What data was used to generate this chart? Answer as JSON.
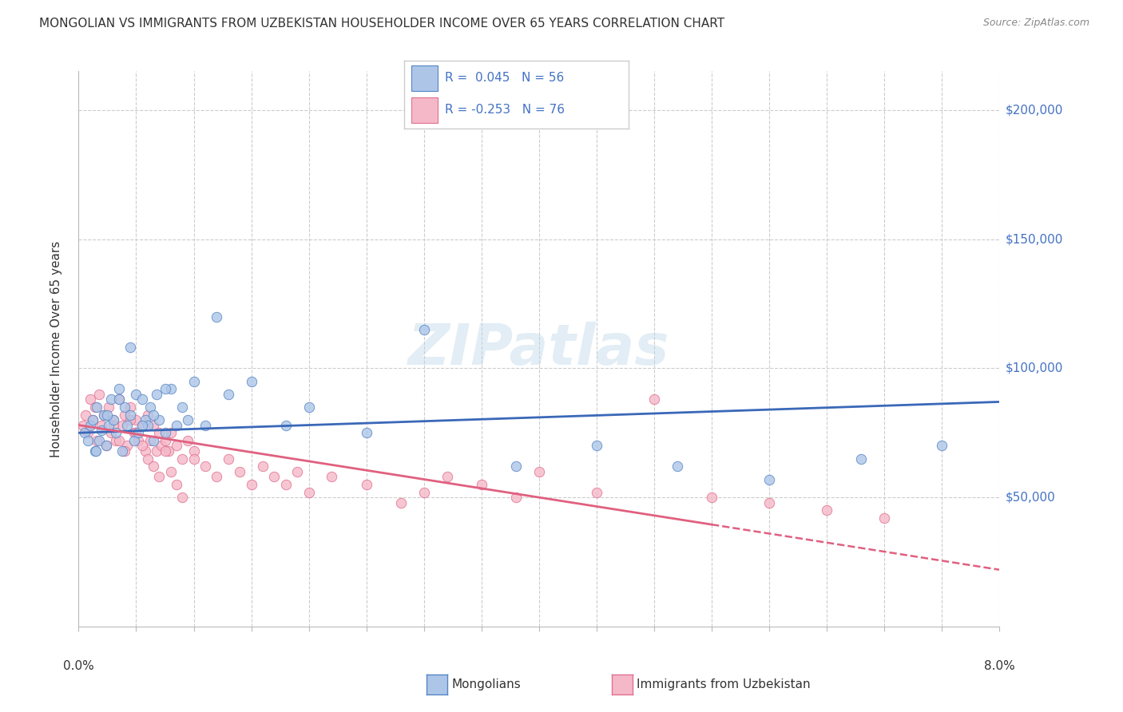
{
  "title": "MONGOLIAN VS IMMIGRANTS FROM UZBEKISTAN HOUSEHOLDER INCOME OVER 65 YEARS CORRELATION CHART",
  "source": "Source: ZipAtlas.com",
  "ylabel": "Householder Income Over 65 years",
  "xmin": 0.0,
  "xmax": 8.0,
  "ymin": 0,
  "ymax": 215000,
  "yticks": [
    50000,
    100000,
    150000,
    200000
  ],
  "ytick_labels": [
    "$50,000",
    "$100,000",
    "$150,000",
    "$200,000"
  ],
  "watermark": "ZIPatlas",
  "series1_color": "#adc6e8",
  "series2_color": "#f5b8c8",
  "series1_edge": "#5585c5",
  "series2_edge": "#e07090",
  "line1_color": "#3a68b8",
  "line2_color": "#e06080",
  "background_color": "#ffffff",
  "grid_color": "#cccccc",
  "title_color": "#333333",
  "source_color": "#888888",
  "ytick_color": "#4472c4",
  "legend_color": "#4472c4",
  "mongolian_x": [
    0.05,
    0.08,
    0.1,
    0.12,
    0.14,
    0.16,
    0.18,
    0.2,
    0.22,
    0.24,
    0.26,
    0.28,
    0.3,
    0.32,
    0.35,
    0.38,
    0.4,
    0.42,
    0.45,
    0.48,
    0.5,
    0.52,
    0.55,
    0.58,
    0.6,
    0.62,
    0.65,
    0.68,
    0.7,
    0.75,
    0.8,
    0.85,
    0.9,
    0.95,
    1.0,
    1.1,
    1.2,
    1.3,
    1.5,
    1.8,
    2.0,
    2.5,
    3.0,
    3.8,
    4.5,
    5.2,
    6.0,
    6.8,
    7.5,
    0.15,
    0.25,
    0.35,
    0.45,
    0.55,
    0.65,
    0.75
  ],
  "mongolian_y": [
    75000,
    72000,
    78000,
    80000,
    68000,
    85000,
    72000,
    76000,
    82000,
    70000,
    78000,
    88000,
    80000,
    75000,
    92000,
    68000,
    85000,
    78000,
    82000,
    72000,
    90000,
    75000,
    88000,
    80000,
    78000,
    85000,
    72000,
    90000,
    80000,
    75000,
    92000,
    78000,
    85000,
    80000,
    95000,
    78000,
    120000,
    90000,
    95000,
    78000,
    85000,
    75000,
    115000,
    62000,
    70000,
    62000,
    57000,
    65000,
    70000,
    68000,
    82000,
    88000,
    108000,
    78000,
    82000,
    92000
  ],
  "uzbek_x": [
    0.04,
    0.06,
    0.08,
    0.1,
    0.12,
    0.14,
    0.16,
    0.18,
    0.2,
    0.22,
    0.24,
    0.26,
    0.28,
    0.3,
    0.32,
    0.35,
    0.38,
    0.4,
    0.42,
    0.45,
    0.48,
    0.5,
    0.52,
    0.55,
    0.58,
    0.6,
    0.62,
    0.65,
    0.68,
    0.7,
    0.72,
    0.75,
    0.78,
    0.8,
    0.85,
    0.9,
    0.95,
    1.0,
    1.1,
    1.2,
    1.3,
    1.4,
    1.5,
    1.6,
    1.7,
    1.8,
    1.9,
    2.0,
    2.2,
    2.5,
    2.8,
    3.0,
    3.2,
    3.5,
    3.8,
    4.0,
    4.5,
    5.0,
    5.5,
    6.0,
    6.5,
    7.0,
    0.3,
    0.35,
    0.4,
    0.45,
    0.5,
    0.55,
    0.6,
    0.65,
    0.7,
    0.75,
    0.8,
    0.85,
    0.9,
    1.0
  ],
  "uzbek_y": [
    78000,
    82000,
    75000,
    88000,
    80000,
    85000,
    72000,
    90000,
    78000,
    82000,
    70000,
    85000,
    75000,
    80000,
    72000,
    88000,
    78000,
    82000,
    70000,
    85000,
    75000,
    80000,
    72000,
    78000,
    68000,
    82000,
    72000,
    78000,
    68000,
    75000,
    70000,
    72000,
    68000,
    75000,
    70000,
    65000,
    72000,
    68000,
    62000,
    58000,
    65000,
    60000,
    55000,
    62000,
    58000,
    55000,
    60000,
    52000,
    58000,
    55000,
    48000,
    52000,
    58000,
    55000,
    50000,
    60000,
    52000,
    88000,
    50000,
    48000,
    45000,
    42000,
    78000,
    72000,
    68000,
    80000,
    75000,
    70000,
    65000,
    62000,
    58000,
    68000,
    60000,
    55000,
    50000,
    65000
  ],
  "line1_intercept": 75000,
  "line1_slope": 1500,
  "line2_intercept": 78000,
  "line2_slope": -7000,
  "solid_end_x": 5.5,
  "dashed_start_x": 5.5
}
